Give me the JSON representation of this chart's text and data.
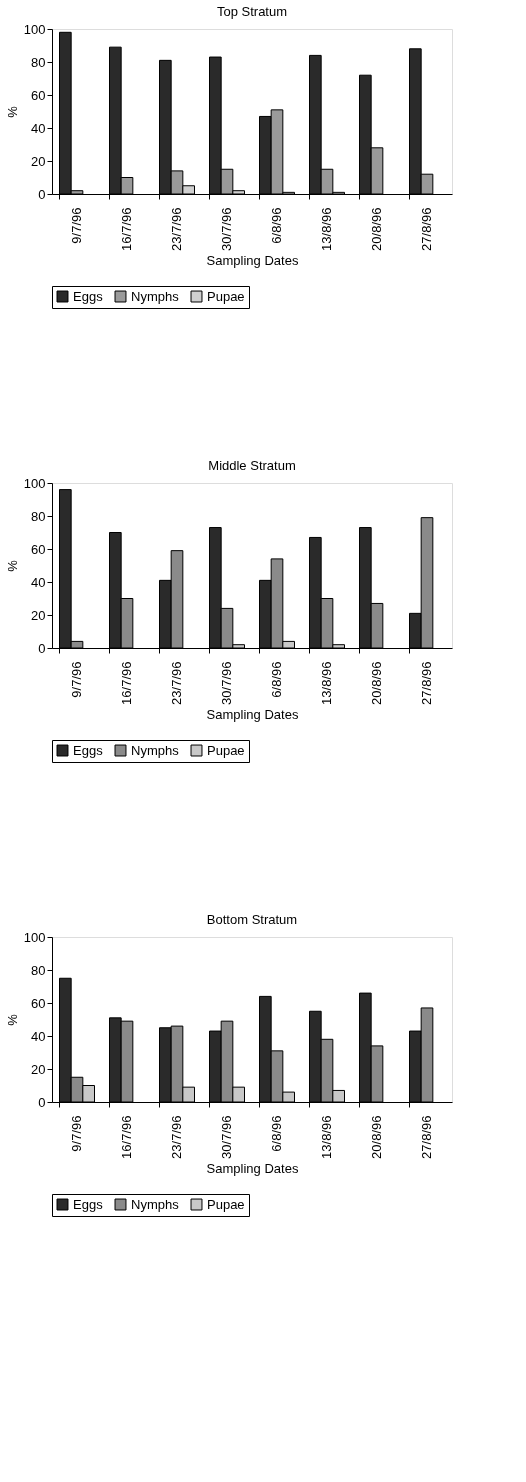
{
  "chart_data": [
    {
      "type": "bar",
      "title": "Top Stratum",
      "xlabel": "Sampling Dates",
      "ylabel": "%",
      "categories": [
        "9/7/96",
        "16/7/96",
        "23/7/96",
        "30/7/96",
        "6/8/96",
        "13/8/96",
        "20/8/96",
        "27/8/96"
      ],
      "series": [
        {
          "name": "Eggs",
          "color": "#2a2a2a",
          "values": [
            98,
            89,
            81,
            83,
            47,
            84,
            72,
            88
          ]
        },
        {
          "name": "Nymphs",
          "color": "#9a9a9a",
          "values": [
            2,
            10,
            14,
            15,
            51,
            15,
            28,
            12
          ]
        },
        {
          "name": "Pupae",
          "color": "#d0d0d0",
          "values": [
            null,
            null,
            5,
            2,
            1,
            1,
            null,
            null
          ]
        }
      ],
      "ylim": [
        0,
        100
      ],
      "yticks": [
        0,
        20,
        40,
        60,
        80,
        100
      ],
      "grid": false,
      "legend": "bottom"
    },
    {
      "type": "bar",
      "title": "Middle Stratum",
      "xlabel": "Sampling Dates",
      "ylabel": "%",
      "categories": [
        "9/7/96",
        "16/7/96",
        "23/7/96",
        "30/7/96",
        "6/8/96",
        "13/8/96",
        "20/8/96",
        "27/8/96"
      ],
      "series": [
        {
          "name": "Eggs",
          "color": "#2a2a2a",
          "values": [
            96,
            70,
            41,
            73,
            41,
            67,
            73,
            21
          ]
        },
        {
          "name": "Nymphs",
          "color": "#8a8a8a",
          "values": [
            4,
            30,
            59,
            24,
            54,
            30,
            27,
            79
          ]
        },
        {
          "name": "Pupae",
          "color": "#c8c8c8",
          "values": [
            null,
            null,
            null,
            2,
            4,
            2,
            null,
            null
          ]
        }
      ],
      "ylim": [
        0,
        100
      ],
      "yticks": [
        0,
        20,
        40,
        60,
        80,
        100
      ],
      "grid": false,
      "legend": "bottom"
    },
    {
      "type": "bar",
      "title": "Bottom Stratum",
      "xlabel": "Sampling Dates",
      "ylabel": "%",
      "categories": [
        "9/7/96",
        "16/7/96",
        "23/7/96",
        "30/7/96",
        "6/8/96",
        "13/8/96",
        "20/8/96",
        "27/8/96"
      ],
      "series": [
        {
          "name": "Eggs",
          "color": "#2a2a2a",
          "values": [
            75,
            51,
            45,
            43,
            64,
            55,
            66,
            43
          ]
        },
        {
          "name": "Nymphs",
          "color": "#8a8a8a",
          "values": [
            15,
            49,
            46,
            49,
            31,
            38,
            34,
            57
          ]
        },
        {
          "name": "Pupae",
          "color": "#c8c8c8",
          "values": [
            10,
            null,
            9,
            9,
            6,
            7,
            null,
            null
          ]
        }
      ],
      "ylim": [
        0,
        100
      ],
      "yticks": [
        0,
        20,
        40,
        60,
        80,
        100
      ],
      "grid": false,
      "legend": "bottom"
    }
  ]
}
